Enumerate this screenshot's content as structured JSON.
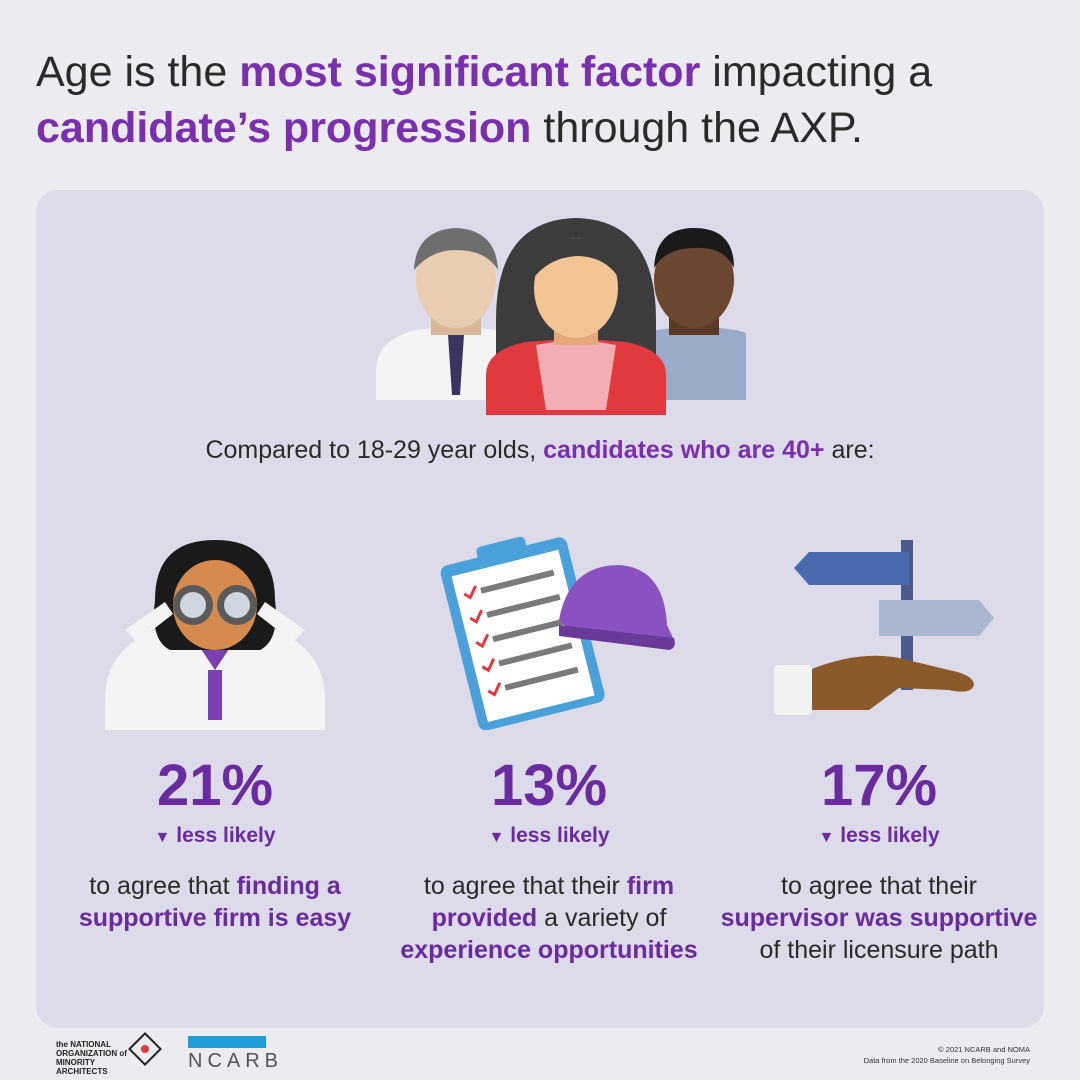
{
  "headline": {
    "part1": "Age is the ",
    "highlight1": "most significant factor",
    "part2": " impacting a ",
    "highlight2": "candidate’s progression",
    "part3": " through the AXP."
  },
  "compare": {
    "part1": "Compared to 18-29 year olds, ",
    "highlight": "candidates who are 40+",
    "part2": " are:"
  },
  "stats": [
    {
      "percent": "21%",
      "likely": "less likely",
      "desc_part1": "to agree that ",
      "desc_highlight1": "finding a supportive firm is easy",
      "desc_part2": "",
      "desc_highlight2": "",
      "desc_part3": "",
      "icon": "binoculars-person-icon"
    },
    {
      "percent": "13%",
      "likely": "less likely",
      "desc_part1": "to agree that their ",
      "desc_highlight1": "firm provided",
      "desc_part2": " a variety of ",
      "desc_highlight2": "experience opportunities",
      "desc_part3": "",
      "icon": "clipboard-hardhat-icon"
    },
    {
      "percent": "17%",
      "likely": "less likely",
      "desc_part1": "to agree that their ",
      "desc_highlight1": "supervisor was supportive",
      "desc_part2": " of their licensure path",
      "desc_highlight2": "",
      "desc_part3": "",
      "icon": "hand-signpost-icon"
    }
  ],
  "footer": {
    "noma_logo": "the NATIONAL ORGANIZATION of MINORITY ARCHITECTS",
    "ncarb_logo": "NCARB",
    "copyright": "© 2021 NCARB and NOMA",
    "source": "Data from the 2020 Baseline on Belonging Survey"
  },
  "colors": {
    "accent": "#6a2aa0",
    "panel": "#dddbea",
    "background": "#ececf0"
  }
}
